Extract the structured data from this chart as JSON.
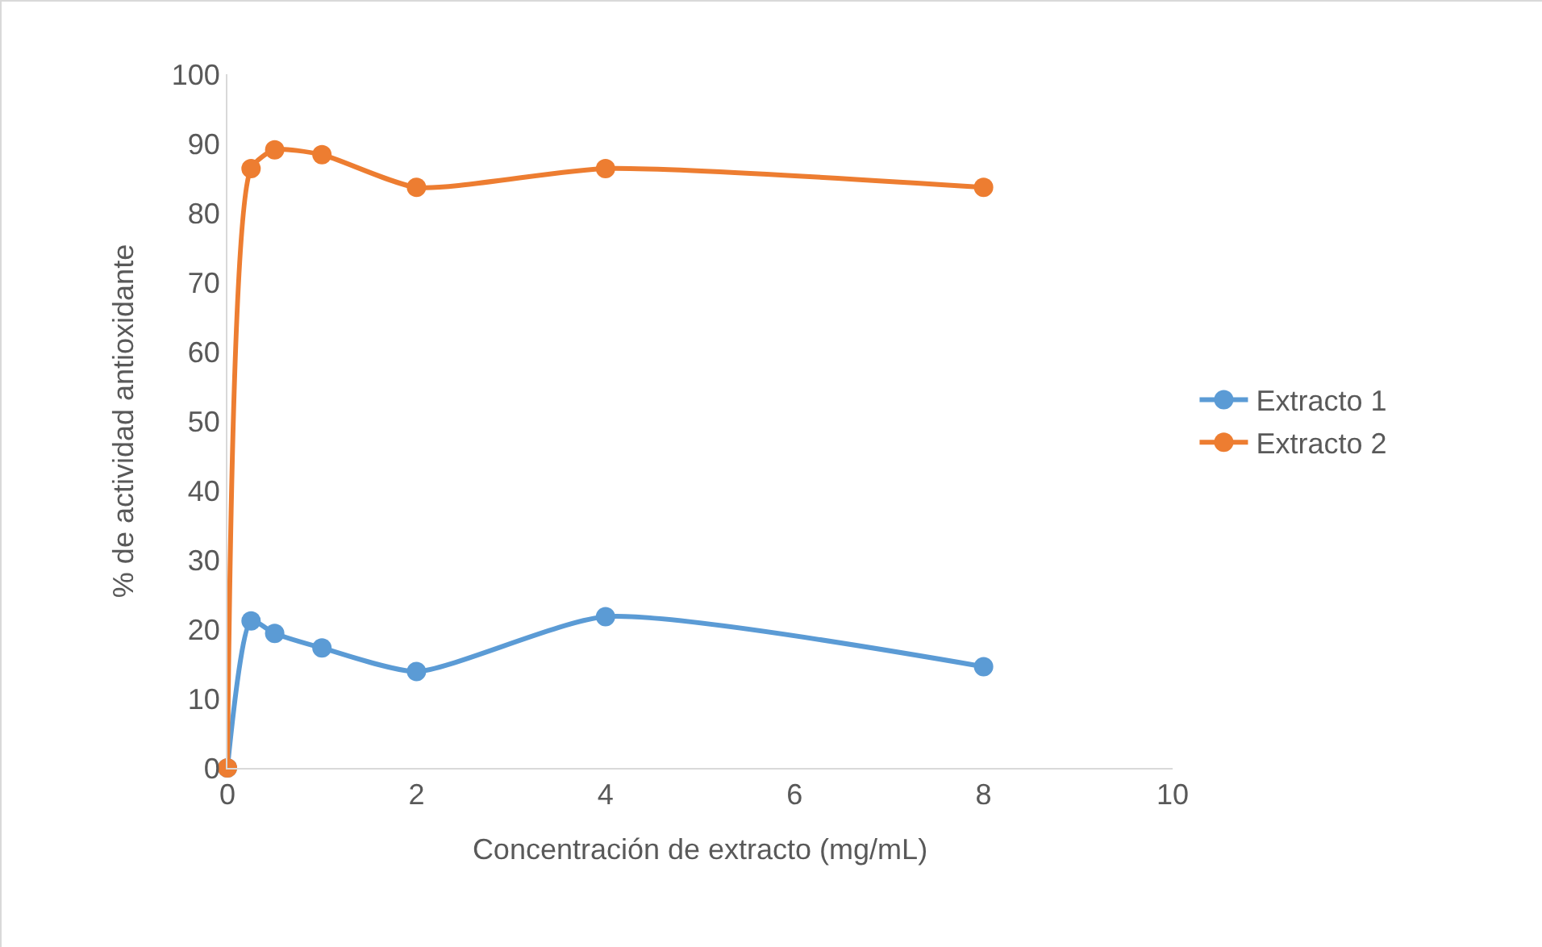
{
  "chart_data": {
    "type": "line",
    "xlabel": "Concentración de extracto (mg/mL)",
    "ylabel": "% de actividad antioxidante",
    "x": [
      0,
      0.25,
      0.5,
      1,
      2,
      4,
      8
    ],
    "series": [
      {
        "name": "Extracto 1",
        "color": "#5b9bd5",
        "values": [
          0,
          21.2,
          19.4,
          17.3,
          13.9,
          21.8,
          14.6
        ]
      },
      {
        "name": "Extracto 2",
        "color": "#ed7d31",
        "values": [
          0,
          86.4,
          89.1,
          88.4,
          83.7,
          86.4,
          83.7
        ]
      }
    ],
    "xlim": [
      0,
      10
    ],
    "xticks": [
      0,
      2,
      4,
      6,
      8,
      10
    ],
    "ylim": [
      0,
      100
    ],
    "yticks": [
      0,
      10,
      20,
      30,
      40,
      50,
      60,
      70,
      80,
      90,
      100
    ],
    "grid": false,
    "legend": "right",
    "marker": "circle",
    "line_style": "solid"
  }
}
